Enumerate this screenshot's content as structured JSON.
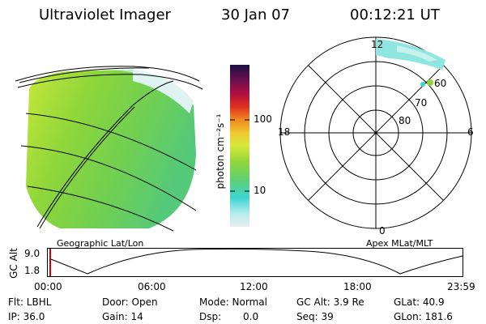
{
  "header": {
    "title": "Ultraviolet Imager",
    "date": "30 Jan 07",
    "time": "00:12:21  UT"
  },
  "colorbar": {
    "unit_label": "photon cm⁻²s⁻¹",
    "ticks": [
      "100",
      "10"
    ]
  },
  "earth_view": {
    "caption": "Geographic Lat/Lon"
  },
  "polar_view": {
    "caption": "Apex  MLat/MLT",
    "mlt_labels": {
      "top": "12",
      "left": "18",
      "right": "6",
      "bottom": "0"
    },
    "lat_labels": [
      "60",
      "70",
      "80"
    ]
  },
  "altitude_plot": {
    "ylabel": "GC Alt",
    "ytick_high": "9.0",
    "ytick_low": "1.8",
    "xticks": [
      "00:00",
      "06:00",
      "12:00",
      "18:00",
      "23:59"
    ]
  },
  "status": {
    "filter": "Flt: LBHL",
    "ip": "IP: 36.0",
    "door": "Door: Open",
    "gain": "Gain: 14",
    "mode": "Mode: Normal",
    "dsp_label": "Dsp:",
    "dsp_value": "0.0",
    "gc_alt": "GC Alt: 3.9 Re",
    "seq": "Seq: 39",
    "glat": "GLat:  40.9",
    "glon": "GLon: 181.6"
  },
  "colors": {
    "background": "#ffffff",
    "image_green": "#8fd63a",
    "image_yellow": "#d6e83a",
    "image_cyan": "#3fd4d0",
    "marker": "#d00000"
  }
}
